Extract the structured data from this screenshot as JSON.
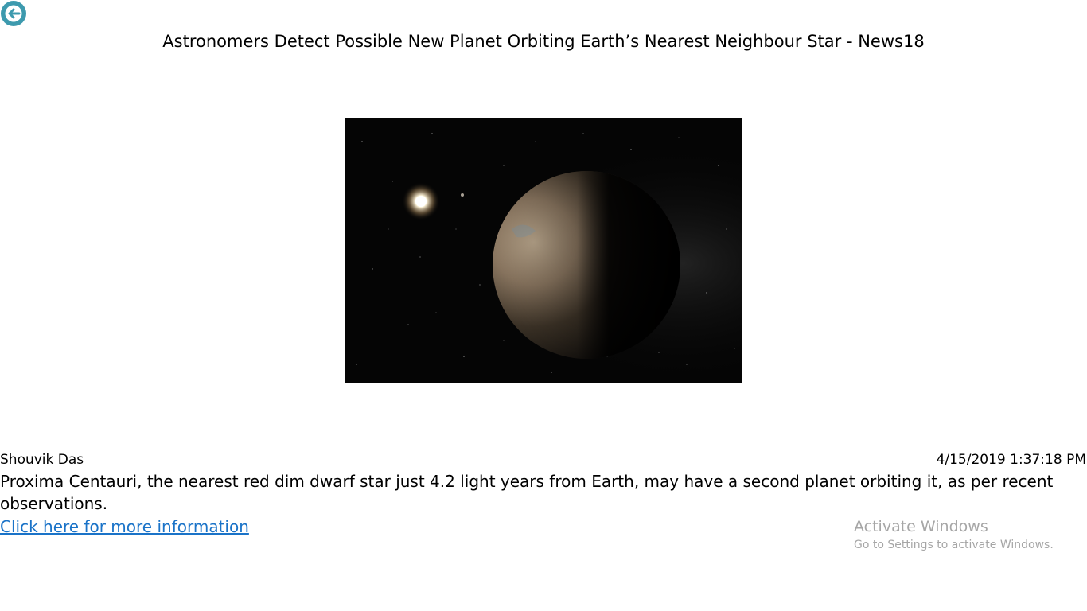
{
  "article": {
    "title": "Astronomers Detect Possible New Planet Orbiting Earth’s Nearest Neighbour Star - News18",
    "image_alt": "Artist impression of a planet orbiting Proxima Centauri",
    "author": "Shouvik Das",
    "published": "4/15/2019 1:37:18 PM",
    "summary": "Proxima Centauri, the nearest red dim dwarf star just 4.2 light years from Earth, may have a second planet orbiting it, as per recent observations.",
    "link_label": "Click here for more information"
  },
  "navigation": {
    "back_icon": "back-arrow-icon"
  },
  "watermark": {
    "title": "Activate Windows",
    "subtitle": "Go to Settings to activate Windows."
  },
  "colors": {
    "back_button": "#3d9aae",
    "link": "#1a73c8",
    "watermark": "#a6a6a6"
  }
}
